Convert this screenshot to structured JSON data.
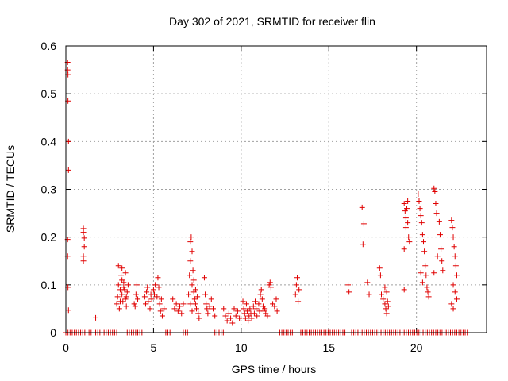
{
  "chart_data": {
    "type": "scatter",
    "title": "Day 302 of 2021, SRMTID for receiver flin",
    "xlabel": "GPS time / hours",
    "ylabel": "SRMTID / TECUs",
    "xlim": [
      0,
      24
    ],
    "ylim": [
      0,
      0.6
    ],
    "x_ticks": [
      0,
      5,
      10,
      15,
      20
    ],
    "y_ticks": [
      0,
      0.1,
      0.2,
      0.3,
      0.4,
      0.5,
      0.6
    ],
    "x_tick_labels": [
      "0",
      "5",
      "10",
      "15",
      "20"
    ],
    "y_tick_labels": [
      "0",
      "0.1",
      "0.2",
      "0.3",
      "0.4",
      "0.5",
      "0.6"
    ],
    "grid": true,
    "marker": "+",
    "color": "#e00000",
    "series": [
      {
        "name": "SRMTID",
        "points": [
          [
            0.1,
            0.566
          ],
          [
            0.1,
            0.55
          ],
          [
            0.12,
            0.54
          ],
          [
            0.12,
            0.485
          ],
          [
            0.15,
            0.4
          ],
          [
            0.15,
            0.34
          ],
          [
            0.1,
            0.195
          ],
          [
            0.1,
            0.16
          ],
          [
            0.12,
            0.095
          ],
          [
            0.15,
            0.047
          ],
          [
            1.0,
            0.218
          ],
          [
            1.0,
            0.21
          ],
          [
            1.05,
            0.198
          ],
          [
            1.05,
            0.18
          ],
          [
            1.0,
            0.16
          ],
          [
            1.0,
            0.15
          ],
          [
            1.7,
            0.031
          ],
          [
            2.9,
            0.06
          ],
          [
            2.95,
            0.075
          ],
          [
            3.0,
            0.1
          ],
          [
            3.0,
            0.14
          ],
          [
            3.05,
            0.05
          ],
          [
            3.1,
            0.09
          ],
          [
            3.15,
            0.12
          ],
          [
            3.2,
            0.08
          ],
          [
            3.2,
            0.135
          ],
          [
            3.25,
            0.065
          ],
          [
            3.3,
            0.105
          ],
          [
            3.35,
            0.09
          ],
          [
            3.4,
            0.125
          ],
          [
            3.4,
            0.07
          ],
          [
            3.45,
            0.055
          ],
          [
            3.5,
            0.085
          ],
          [
            3.55,
            0.1
          ],
          [
            3.1,
            0.065
          ],
          [
            3.2,
            0.11
          ],
          [
            3.3,
            0.095
          ],
          [
            3.45,
            0.075
          ],
          [
            3.9,
            0.06
          ],
          [
            3.95,
            0.055
          ],
          [
            4.0,
            0.08
          ],
          [
            4.05,
            0.1
          ],
          [
            4.1,
            0.07
          ],
          [
            4.5,
            0.075
          ],
          [
            4.55,
            0.06
          ],
          [
            4.6,
            0.085
          ],
          [
            4.7,
            0.065
          ],
          [
            4.8,
            0.05
          ],
          [
            4.9,
            0.07
          ],
          [
            5.0,
            0.09
          ],
          [
            5.05,
            0.08
          ],
          [
            5.1,
            0.1
          ],
          [
            5.2,
            0.075
          ],
          [
            5.3,
            0.095
          ],
          [
            5.35,
            0.06
          ],
          [
            5.4,
            0.045
          ],
          [
            5.5,
            0.035
          ],
          [
            5.6,
            0.05
          ],
          [
            4.65,
            0.095
          ],
          [
            4.85,
            0.08
          ],
          [
            5.25,
            0.115
          ],
          [
            5.45,
            0.07
          ],
          [
            6.1,
            0.07
          ],
          [
            6.2,
            0.05
          ],
          [
            6.3,
            0.06
          ],
          [
            6.4,
            0.045
          ],
          [
            6.5,
            0.055
          ],
          [
            6.6,
            0.04
          ],
          [
            6.7,
            0.06
          ],
          [
            7.0,
            0.08
          ],
          [
            7.05,
            0.12
          ],
          [
            7.1,
            0.15
          ],
          [
            7.1,
            0.19
          ],
          [
            7.15,
            0.2
          ],
          [
            7.2,
            0.1
          ],
          [
            7.2,
            0.17
          ],
          [
            7.25,
            0.13
          ],
          [
            7.3,
            0.085
          ],
          [
            7.35,
            0.07
          ],
          [
            7.4,
            0.06
          ],
          [
            7.45,
            0.05
          ],
          [
            7.5,
            0.075
          ],
          [
            7.55,
            0.04
          ],
          [
            7.6,
            0.03
          ],
          [
            7.1,
            0.06
          ],
          [
            7.2,
            0.045
          ],
          [
            7.3,
            0.11
          ],
          [
            7.4,
            0.09
          ],
          [
            7.9,
            0.115
          ],
          [
            7.95,
            0.08
          ],
          [
            8.0,
            0.06
          ],
          [
            8.05,
            0.05
          ],
          [
            8.1,
            0.04
          ],
          [
            8.2,
            0.055
          ],
          [
            8.3,
            0.07
          ],
          [
            8.4,
            0.05
          ],
          [
            8.5,
            0.035
          ],
          [
            9.0,
            0.05
          ],
          [
            9.1,
            0.035
          ],
          [
            9.2,
            0.025
          ],
          [
            9.3,
            0.04
          ],
          [
            9.4,
            0.03
          ],
          [
            9.5,
            0.02
          ],
          [
            9.6,
            0.05
          ],
          [
            9.7,
            0.035
          ],
          [
            9.8,
            0.045
          ],
          [
            9.9,
            0.03
          ],
          [
            10.1,
            0.065
          ],
          [
            10.15,
            0.05
          ],
          [
            10.2,
            0.04
          ],
          [
            10.25,
            0.03
          ],
          [
            10.3,
            0.06
          ],
          [
            10.35,
            0.045
          ],
          [
            10.4,
            0.025
          ],
          [
            10.45,
            0.035
          ],
          [
            10.5,
            0.05
          ],
          [
            10.55,
            0.04
          ],
          [
            10.6,
            0.03
          ],
          [
            10.7,
            0.055
          ],
          [
            10.75,
            0.04
          ],
          [
            10.8,
            0.065
          ],
          [
            10.85,
            0.05
          ],
          [
            10.9,
            0.035
          ],
          [
            11.0,
            0.06
          ],
          [
            11.05,
            0.045
          ],
          [
            11.1,
            0.08
          ],
          [
            11.15,
            0.09
          ],
          [
            11.2,
            0.07
          ],
          [
            11.25,
            0.055
          ],
          [
            11.3,
            0.045
          ],
          [
            11.35,
            0.05
          ],
          [
            11.4,
            0.04
          ],
          [
            11.5,
            0.035
          ],
          [
            11.6,
            0.1
          ],
          [
            11.65,
            0.105
          ],
          [
            11.7,
            0.095
          ],
          [
            11.8,
            0.06
          ],
          [
            11.9,
            0.055
          ],
          [
            12.0,
            0.07
          ],
          [
            12.05,
            0.045
          ],
          [
            13.1,
            0.08
          ],
          [
            13.15,
            0.1
          ],
          [
            13.2,
            0.115
          ],
          [
            13.25,
            0.065
          ],
          [
            13.3,
            0.09
          ],
          [
            16.1,
            0.1
          ],
          [
            16.15,
            0.085
          ],
          [
            16.9,
            0.262
          ],
          [
            16.95,
            0.185
          ],
          [
            17.0,
            0.228
          ],
          [
            17.2,
            0.105
          ],
          [
            17.3,
            0.08
          ],
          [
            17.9,
            0.135
          ],
          [
            17.95,
            0.12
          ],
          [
            18.0,
            0.08
          ],
          [
            18.1,
            0.07
          ],
          [
            18.2,
            0.06
          ],
          [
            18.25,
            0.05
          ],
          [
            18.3,
            0.04
          ],
          [
            18.35,
            0.065
          ],
          [
            18.4,
            0.055
          ],
          [
            18.2,
            0.095
          ],
          [
            18.3,
            0.085
          ],
          [
            19.3,
            0.27
          ],
          [
            19.35,
            0.255
          ],
          [
            19.4,
            0.24
          ],
          [
            19.45,
            0.26
          ],
          [
            19.5,
            0.275
          ],
          [
            19.55,
            0.2
          ],
          [
            19.6,
            0.19
          ],
          [
            19.3,
            0.175
          ],
          [
            19.4,
            0.22
          ],
          [
            19.5,
            0.23
          ],
          [
            19.3,
            0.09
          ],
          [
            20.1,
            0.29
          ],
          [
            20.15,
            0.275
          ],
          [
            20.2,
            0.26
          ],
          [
            20.25,
            0.245
          ],
          [
            20.3,
            0.23
          ],
          [
            20.35,
            0.205
          ],
          [
            20.4,
            0.19
          ],
          [
            20.45,
            0.17
          ],
          [
            20.5,
            0.14
          ],
          [
            20.55,
            0.12
          ],
          [
            20.6,
            0.095
          ],
          [
            20.65,
            0.085
          ],
          [
            20.7,
            0.075
          ],
          [
            20.25,
            0.125
          ],
          [
            20.35,
            0.105
          ],
          [
            21.0,
            0.302
          ],
          [
            21.05,
            0.295
          ],
          [
            21.1,
            0.27
          ],
          [
            21.15,
            0.25
          ],
          [
            21.2,
            0.16
          ],
          [
            21.3,
            0.232
          ],
          [
            21.35,
            0.205
          ],
          [
            21.4,
            0.175
          ],
          [
            21.45,
            0.15
          ],
          [
            21.5,
            0.13
          ],
          [
            21.0,
            0.125
          ],
          [
            22.0,
            0.235
          ],
          [
            22.05,
            0.22
          ],
          [
            22.1,
            0.2
          ],
          [
            22.15,
            0.18
          ],
          [
            22.2,
            0.16
          ],
          [
            22.25,
            0.14
          ],
          [
            22.3,
            0.12
          ],
          [
            22.1,
            0.1
          ],
          [
            22.2,
            0.085
          ],
          [
            22.3,
            0.07
          ],
          [
            22.0,
            0.06
          ],
          [
            22.1,
            0.05
          ]
        ]
      }
    ],
    "zero_segments": [
      [
        0.0,
        1.55
      ],
      [
        1.7,
        3.0
      ],
      [
        3.5,
        4.4
      ],
      [
        5.7,
        6.0
      ],
      [
        6.7,
        7.0
      ],
      [
        8.5,
        9.0
      ],
      [
        12.2,
        13.0
      ],
      [
        13.4,
        16.0
      ],
      [
        16.3,
        23.0
      ]
    ]
  }
}
